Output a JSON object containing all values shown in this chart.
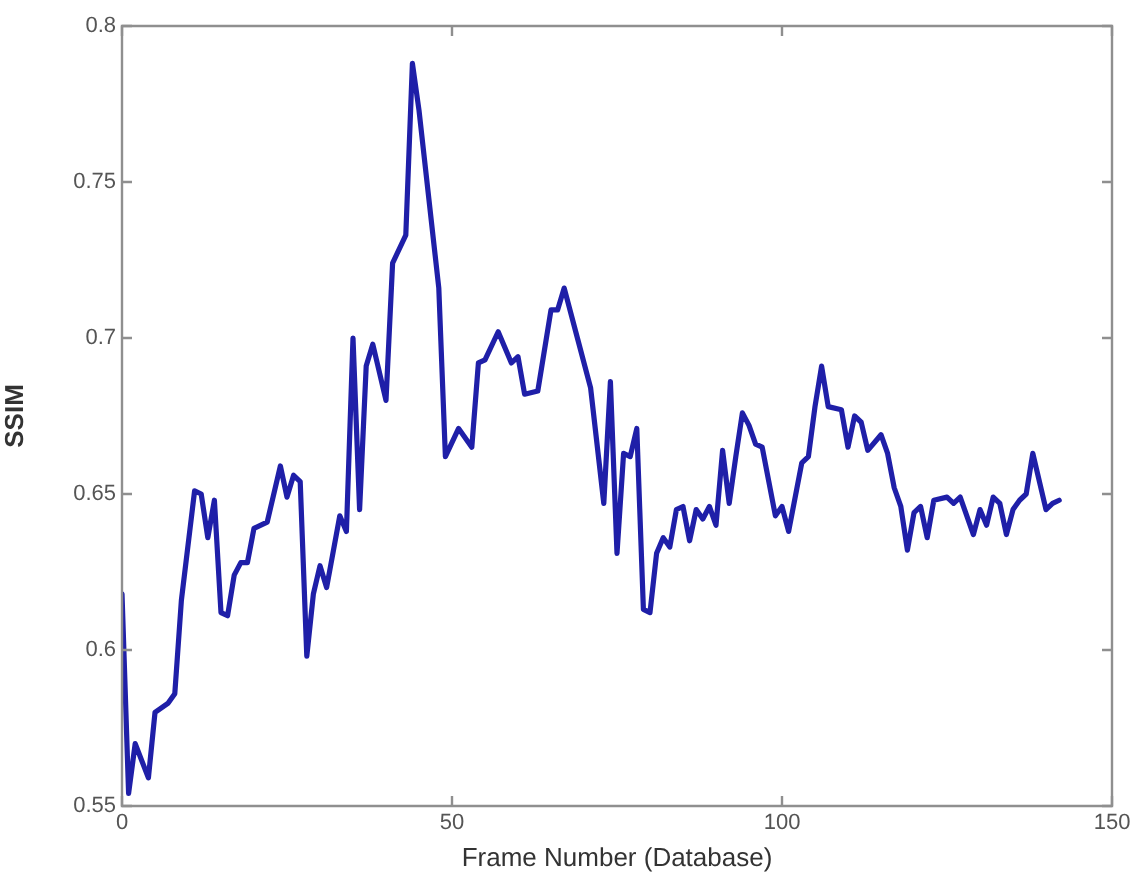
{
  "chart_data": {
    "type": "line",
    "xlabel": "Frame Number (Database)",
    "ylabel": "SSIM",
    "x": [
      0,
      1,
      2,
      4,
      5,
      7,
      8,
      9,
      11,
      12,
      13,
      14,
      15,
      16,
      17,
      18,
      19,
      20,
      22,
      24,
      25,
      26,
      27,
      28,
      29,
      30,
      31,
      33,
      34,
      35,
      36,
      37,
      38,
      40,
      41,
      43,
      44,
      45,
      48,
      49,
      51,
      53,
      54,
      55,
      57,
      59,
      60,
      61,
      63,
      65,
      66,
      67,
      69,
      71,
      73,
      74,
      75,
      76,
      77,
      78,
      79,
      80,
      81,
      82,
      83,
      84,
      85,
      86,
      87,
      88,
      89,
      90,
      91,
      92,
      93,
      94,
      95,
      96,
      97,
      98,
      99,
      100,
      101,
      103,
      104,
      105,
      106,
      107,
      109,
      110,
      111,
      112,
      113,
      115,
      116,
      117,
      118,
      119,
      120,
      121,
      122,
      123,
      125,
      126,
      127,
      129,
      130,
      131,
      132,
      133,
      134,
      135,
      136,
      137,
      138,
      140,
      141,
      142
    ],
    "values": [
      0.618,
      0.554,
      0.57,
      0.559,
      0.58,
      0.583,
      0.586,
      0.616,
      0.651,
      0.65,
      0.636,
      0.648,
      0.612,
      0.611,
      0.624,
      0.628,
      0.628,
      0.639,
      0.641,
      0.659,
      0.649,
      0.656,
      0.654,
      0.598,
      0.618,
      0.627,
      0.62,
      0.643,
      0.638,
      0.7,
      0.645,
      0.691,
      0.698,
      0.68,
      0.724,
      0.733,
      0.788,
      0.773,
      0.716,
      0.662,
      0.671,
      0.665,
      0.692,
      0.693,
      0.702,
      0.692,
      0.694,
      0.682,
      0.683,
      0.709,
      0.709,
      0.716,
      0.7,
      0.684,
      0.647,
      0.686,
      0.631,
      0.663,
      0.662,
      0.671,
      0.613,
      0.612,
      0.631,
      0.636,
      0.633,
      0.645,
      0.646,
      0.635,
      0.645,
      0.642,
      0.646,
      0.64,
      0.664,
      0.647,
      0.662,
      0.676,
      0.672,
      0.666,
      0.665,
      0.654,
      0.643,
      0.646,
      0.638,
      0.66,
      0.662,
      0.678,
      0.691,
      0.678,
      0.677,
      0.665,
      0.675,
      0.673,
      0.664,
      0.669,
      0.663,
      0.652,
      0.646,
      0.632,
      0.644,
      0.646,
      0.636,
      0.648,
      0.649,
      0.647,
      0.649,
      0.637,
      0.645,
      0.64,
      0.649,
      0.647,
      0.637,
      0.645,
      0.648,
      0.65,
      0.663,
      0.645,
      0.647,
      0.648
    ],
    "color": "#1f1fa8",
    "marker": "none",
    "line_style": "solid",
    "xlim": [
      0,
      150
    ],
    "xticks": [
      0,
      50,
      100,
      150
    ],
    "ylim": [
      0.55,
      0.8
    ],
    "yticks": [
      0.55,
      0.6,
      0.65,
      0.7,
      0.75,
      0.8
    ]
  }
}
